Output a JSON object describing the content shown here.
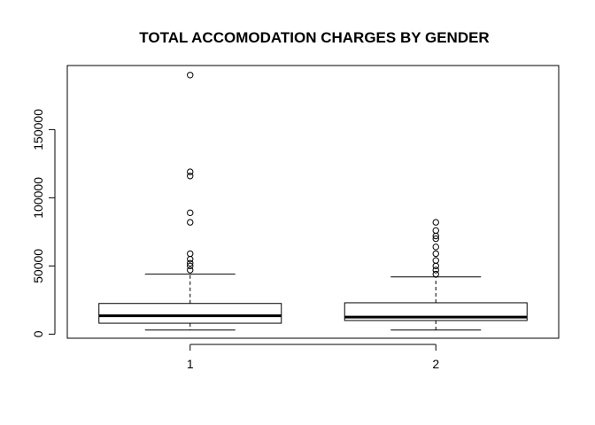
{
  "chart_data": {
    "type": "box",
    "title": "TOTAL ACCOMODATION CHARGES BY GENDER",
    "xlabel": "",
    "ylabel": "",
    "categories": [
      "1",
      "2"
    ],
    "y_ticks": [
      0,
      50000,
      100000,
      150000
    ],
    "y_tick_labels": [
      "0",
      "50000",
      "100000",
      "150000"
    ],
    "ylim": [
      -3000,
      197000
    ],
    "boxes": [
      {
        "category": "1",
        "whisker_low": 3000,
        "q1": 8000,
        "median": 13500,
        "q3": 22500,
        "whisker_high": 44000,
        "outliers": [
          47000,
          50000,
          52000,
          55000,
          59000,
          82000,
          89000,
          116000,
          119000,
          190000
        ]
      },
      {
        "category": "2",
        "whisker_low": 3000,
        "q1": 10000,
        "median": 12500,
        "q3": 23000,
        "whisker_high": 42000,
        "outliers": [
          44000,
          47000,
          50000,
          54000,
          59000,
          64000,
          70000,
          72000,
          76000,
          82000
        ]
      }
    ]
  }
}
